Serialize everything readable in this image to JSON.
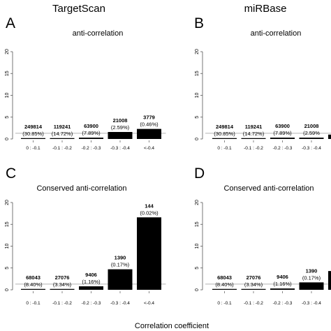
{
  "figure": {
    "columns": [
      "TargetScan",
      "miRBase"
    ],
    "xlabel": "Correlation coefficient"
  },
  "chart_data": [
    {
      "type": "bar",
      "letter": "A",
      "title": "anti-correlation",
      "categories": [
        "0 : -0.1",
        "-0.1 : -0.2",
        "-0.2 : -0.3",
        "-0.3 : -0.4",
        "<-0.4"
      ],
      "values": [
        0.2,
        0.2,
        0.3,
        1.6,
        2.3
      ],
      "counts": [
        "249814",
        "119241",
        "63900",
        "21008",
        "3779"
      ],
      "percents": [
        "(30.85%)",
        "(14.72%)",
        "(7.89%)",
        "(2.59%)",
        "(0.46%)"
      ],
      "ylim": [
        0,
        20
      ],
      "yticks": [
        0,
        5,
        10,
        15,
        20
      ],
      "reference_line": 1.3
    },
    {
      "type": "bar",
      "letter": "B",
      "title": "anti-correlation",
      "categories": [
        "0 : -0.1",
        "-0.1 : -0.2",
        "-0.2 : -0.3",
        "-0.3 : -0.4",
        ""
      ],
      "values": [
        0.2,
        0.2,
        0.3,
        0.3,
        1.0
      ],
      "counts": [
        "249814",
        "119241",
        "63900",
        "21008",
        ""
      ],
      "percents": [
        "(30.85%)",
        "(14.72%)",
        "(7.89%)",
        "(2.59%",
        ""
      ],
      "ylim": [
        0,
        20
      ],
      "yticks": [
        0,
        5,
        10,
        15,
        20
      ],
      "reference_line": 1.3
    },
    {
      "type": "bar",
      "letter": "C",
      "title": "Conserved  anti-correlation",
      "categories": [
        "0 : -0.1",
        "-0.1 : -0.2",
        "-0.2 : -0.3",
        "-0.3 : -0.4",
        "<-0.4"
      ],
      "values": [
        0.2,
        0.2,
        0.8,
        4.7,
        16.6
      ],
      "counts": [
        "68043",
        "27076",
        "9406",
        "1390",
        "144"
      ],
      "percents": [
        "(8.40%)",
        "(3.34%)",
        "(1.16%)",
        "(0.17%)",
        "(0.02%)"
      ],
      "ylim": [
        0,
        20
      ],
      "yticks": [
        0,
        5,
        10,
        15,
        20
      ],
      "reference_line": 1.3
    },
    {
      "type": "bar",
      "letter": "D",
      "title": "Conserved  anti-correlation",
      "categories": [
        "0 : -0.1",
        "-0.1 : -0.2",
        "-0.2 : -0.3",
        "-0.3 : -0.4",
        ""
      ],
      "values": [
        0.2,
        0.2,
        0.3,
        1.7,
        4.3
      ],
      "counts": [
        "68043",
        "27076",
        "9406",
        "1390",
        ""
      ],
      "percents": [
        "(8.40%)",
        "(3.34%)",
        "(1.16%)",
        "(0.17%)",
        "("
      ],
      "ylim": [
        0,
        20
      ],
      "yticks": [
        0,
        5,
        10,
        15,
        20
      ],
      "reference_line": 1.3
    }
  ]
}
